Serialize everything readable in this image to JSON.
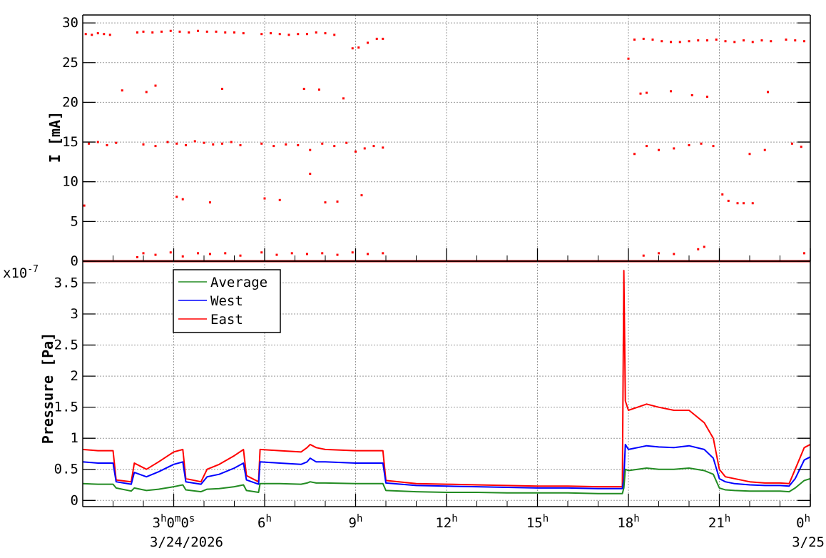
{
  "chart_data": [
    {
      "type": "scatter",
      "ylabel": "I [mA]",
      "ylim": [
        0,
        31
      ],
      "yticks": [
        0,
        5,
        10,
        15,
        20,
        25,
        30
      ],
      "xlim": [
        0,
        24
      ],
      "grid": true,
      "series": [
        {
          "color": "#ff0000",
          "x": [
            0.1,
            0.3,
            0.5,
            0.7,
            0.9,
            1.8,
            2.0,
            2.3,
            2.6,
            2.9,
            3.2,
            3.5,
            3.8,
            4.1,
            4.4,
            4.7,
            5.0,
            5.3,
            5.9,
            6.2,
            6.5,
            6.8,
            7.1,
            7.4,
            7.7,
            8.0,
            8.3,
            8.6,
            8.9,
            9.1,
            9.4,
            9.7,
            9.9,
            18.0,
            18.2,
            18.5,
            18.8,
            19.1,
            19.4,
            19.7,
            20.0,
            20.3,
            20.6,
            20.9,
            21.2,
            21.5,
            21.8,
            22.1,
            22.4,
            22.7,
            23.2,
            23.5,
            23.8
          ],
          "y": [
            28.6,
            28.5,
            28.7,
            28.6,
            28.5,
            28.8,
            28.9,
            28.8,
            28.9,
            29.0,
            28.9,
            28.8,
            29.0,
            28.9,
            28.9,
            28.8,
            28.8,
            28.7,
            28.6,
            28.7,
            28.6,
            28.5,
            28.6,
            28.6,
            28.8,
            28.7,
            28.5,
            20.5,
            26.8,
            26.9,
            27.5,
            28.0,
            28.0,
            25.5,
            27.9,
            28.0,
            27.9,
            27.7,
            27.6,
            27.6,
            27.7,
            27.8,
            27.8,
            27.9,
            27.7,
            27.6,
            27.8,
            27.6,
            27.8,
            27.7,
            27.9,
            27.8,
            27.7
          ]
        },
        {
          "color": "#ff0000",
          "x": [
            0.2,
            0.5,
            0.8,
            1.1,
            2.0,
            2.4,
            2.8,
            3.1,
            3.4,
            3.7,
            4.0,
            4.3,
            4.6,
            4.9,
            5.2,
            5.9,
            6.3,
            6.7,
            7.1,
            7.5,
            7.9,
            8.3,
            8.7,
            9.0,
            9.3,
            9.6,
            9.9,
            18.2,
            18.6,
            19.0,
            19.5,
            20.0,
            20.4,
            20.8,
            22.0,
            22.5,
            23.4,
            23.7
          ],
          "y": [
            14.8,
            15.0,
            14.6,
            14.9,
            14.7,
            14.5,
            15.0,
            14.8,
            14.6,
            15.1,
            14.9,
            14.7,
            14.8,
            15.0,
            14.6,
            14.8,
            14.5,
            14.7,
            14.6,
            14.0,
            14.8,
            14.5,
            14.9,
            13.8,
            14.2,
            14.5,
            14.3,
            13.5,
            14.5,
            14.0,
            14.2,
            14.6,
            14.8,
            14.5,
            13.5,
            14.0,
            14.8,
            14.4
          ]
        },
        {
          "color": "#ff0000",
          "x": [
            1.8,
            2.0,
            2.4,
            2.9,
            3.3,
            3.8,
            4.2,
            4.7,
            5.2,
            5.9,
            6.4,
            6.9,
            7.4,
            7.9,
            8.4,
            8.9,
            9.4,
            9.9,
            18.5,
            19.0,
            19.5,
            20.3,
            20.5,
            23.8
          ],
          "y": [
            0.5,
            1.0,
            0.8,
            1.1,
            0.6,
            1.0,
            0.9,
            1.0,
            0.7,
            1.1,
            0.8,
            1.0,
            0.9,
            1.0,
            0.8,
            1.1,
            0.9,
            1.0,
            0.7,
            1.0,
            0.9,
            1.5,
            1.8,
            1.0
          ]
        },
        {
          "color": "#ff0000",
          "x": [
            0.05,
            1.3,
            2.1,
            2.4,
            3.1,
            3.3,
            4.2,
            4.6,
            6.0,
            6.5,
            7.3,
            7.5,
            7.8,
            8.0,
            8.4,
            9.2,
            18.4,
            18.6,
            19.4,
            20.1,
            20.6,
            21.1,
            21.3,
            21.6,
            21.8,
            22.1,
            22.6
          ],
          "y": [
            7.0,
            21.5,
            21.3,
            22.1,
            8.1,
            7.8,
            7.4,
            21.7,
            7.9,
            7.7,
            21.7,
            11.0,
            21.6,
            7.4,
            7.5,
            8.3,
            21.1,
            21.2,
            21.4,
            20.9,
            20.7,
            8.4,
            7.6,
            7.3,
            7.3,
            7.3,
            21.3
          ]
        },
        {
          "color": "#ff0000",
          "x": [
            0,
            24
          ],
          "y": [
            0,
            0
          ]
        }
      ]
    },
    {
      "type": "line",
      "ylabel": "Pressure [Pa]",
      "y_scale_label": "x10",
      "y_scale_exponent": "-7",
      "ylim": [
        -0.1,
        3.85
      ],
      "yticks": [
        0,
        0.5,
        1,
        1.5,
        2,
        2.5,
        3,
        3.5
      ],
      "ytick_labels": [
        "0",
        "0.5",
        "1",
        "1.5",
        "2",
        "2.5",
        "3",
        "3.5"
      ],
      "xlim": [
        0,
        24
      ],
      "xtick_values": [
        3,
        6,
        9,
        12,
        15,
        18,
        21,
        24
      ],
      "xtick_bases": [
        "3",
        "6",
        "9",
        "12",
        "15",
        "18",
        "21",
        "0"
      ],
      "xtick_sups": [
        "h",
        "h",
        "h",
        "h",
        "h",
        "h",
        "h",
        "h"
      ],
      "x_origin_tick": {
        "value": 3,
        "label": "3",
        "extra_parts": [
          {
            "base": "0",
            "sup": "m"
          },
          {
            "base": "0",
            "sup": "s"
          }
        ]
      },
      "xdate_labels": [
        {
          "x": 3,
          "text": "3/24/2026"
        },
        {
          "x": 24,
          "text": "3/25"
        }
      ],
      "grid": true,
      "legend_position": "top-left",
      "legend": [
        {
          "name": "Average",
          "color": "#228b22"
        },
        {
          "name": "West",
          "color": "#0000ff"
        },
        {
          "name": "East",
          "color": "#ff0000"
        }
      ],
      "x": [
        0,
        0.5,
        1.0,
        1.1,
        1.6,
        1.7,
        2.1,
        2.5,
        3.0,
        3.3,
        3.4,
        3.9,
        4.1,
        4.5,
        5.0,
        5.3,
        5.4,
        5.8,
        5.85,
        6.5,
        7.2,
        7.4,
        7.5,
        7.7,
        8.0,
        9.0,
        9.9,
        10.0,
        11.0,
        12.0,
        13.0,
        14.0,
        15.0,
        16.0,
        17.0,
        17.8,
        17.85,
        17.9,
        18.0,
        18.3,
        18.6,
        19.0,
        19.5,
        20.0,
        20.5,
        20.8,
        21.0,
        21.2,
        21.5,
        22.0,
        22.5,
        23.0,
        23.3,
        23.5,
        23.8,
        24.0
      ],
      "series": [
        {
          "name": "East",
          "color": "#ff0000",
          "values": [
            0.82,
            0.8,
            0.8,
            0.33,
            0.3,
            0.6,
            0.5,
            0.62,
            0.78,
            0.82,
            0.35,
            0.3,
            0.5,
            0.58,
            0.72,
            0.82,
            0.4,
            0.3,
            0.82,
            0.8,
            0.78,
            0.85,
            0.9,
            0.85,
            0.82,
            0.8,
            0.8,
            0.32,
            0.27,
            0.26,
            0.25,
            0.24,
            0.23,
            0.23,
            0.22,
            0.22,
            3.7,
            1.6,
            1.45,
            1.5,
            1.55,
            1.5,
            1.45,
            1.45,
            1.25,
            1.0,
            0.5,
            0.38,
            0.35,
            0.3,
            0.28,
            0.28,
            0.27,
            0.5,
            0.85,
            0.9
          ]
        },
        {
          "name": "West",
          "color": "#0000ff",
          "values": [
            0.62,
            0.6,
            0.6,
            0.3,
            0.26,
            0.45,
            0.38,
            0.46,
            0.58,
            0.62,
            0.3,
            0.26,
            0.38,
            0.42,
            0.52,
            0.6,
            0.33,
            0.26,
            0.62,
            0.6,
            0.58,
            0.62,
            0.68,
            0.62,
            0.62,
            0.6,
            0.6,
            0.28,
            0.24,
            0.23,
            0.22,
            0.21,
            0.2,
            0.2,
            0.19,
            0.19,
            0.35,
            0.9,
            0.82,
            0.85,
            0.88,
            0.86,
            0.85,
            0.88,
            0.82,
            0.68,
            0.35,
            0.3,
            0.27,
            0.25,
            0.24,
            0.24,
            0.23,
            0.35,
            0.65,
            0.7
          ]
        },
        {
          "name": "Average",
          "color": "#228b22",
          "values": [
            0.27,
            0.26,
            0.26,
            0.2,
            0.15,
            0.2,
            0.16,
            0.18,
            0.22,
            0.25,
            0.17,
            0.14,
            0.18,
            0.19,
            0.22,
            0.25,
            0.16,
            0.13,
            0.27,
            0.27,
            0.26,
            0.28,
            0.3,
            0.28,
            0.28,
            0.27,
            0.27,
            0.16,
            0.14,
            0.13,
            0.13,
            0.12,
            0.12,
            0.12,
            0.11,
            0.11,
            0.2,
            0.5,
            0.48,
            0.5,
            0.52,
            0.5,
            0.5,
            0.52,
            0.48,
            0.42,
            0.2,
            0.17,
            0.16,
            0.15,
            0.15,
            0.15,
            0.14,
            0.2,
            0.32,
            0.35
          ]
        }
      ]
    }
  ]
}
